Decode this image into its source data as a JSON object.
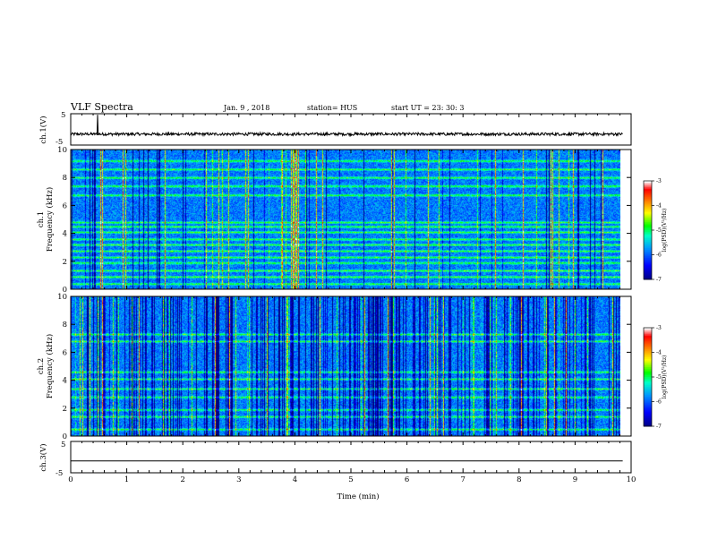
{
  "header": {
    "title": "VLF Spectra",
    "date": "Jan. 9 , 2018",
    "station": "station= HUS",
    "start": "start UT = 23: 30: 3"
  },
  "chart_data": [
    {
      "type": "line",
      "name": "ch.1 waveform",
      "ylabel": "ch.1(V)",
      "ylim": [
        -5,
        5
      ],
      "yticks": [
        "5",
        "-5"
      ],
      "xlim": [
        0,
        10
      ],
      "baseline": -1.5,
      "spike_at_min": 0.48
    },
    {
      "type": "heatmap",
      "name": "ch.1 spectrogram",
      "ylabel": "ch.1\nFrequency (kHz)",
      "ylim": [
        0,
        10
      ],
      "yticks": [
        "0",
        "2",
        "4",
        "6",
        "8",
        "10"
      ],
      "xlim": [
        0,
        10
      ],
      "data_end_min": 9.85,
      "colorbar": {
        "label": "log(PSD)(V²/Hz)",
        "range": [
          -7,
          -3
        ],
        "ticks": [
          "-3",
          "-4",
          "-5",
          "-6",
          "-7"
        ]
      },
      "harmonic_bands_khz": [
        0.4,
        0.9,
        1.35,
        1.9,
        2.3,
        2.75,
        3.2,
        3.6,
        4.1,
        4.5,
        4.8,
        6.75,
        7.4,
        8.0,
        8.6,
        9.2
      ]
    },
    {
      "type": "heatmap",
      "name": "ch.2 spectrogram",
      "ylabel": "ch.2\nFrequency (kHz)",
      "ylim": [
        0,
        10
      ],
      "yticks": [
        "0",
        "2",
        "4",
        "6",
        "8",
        "10"
      ],
      "xlim": [
        0,
        10
      ],
      "data_end_min": 9.85,
      "colorbar": {
        "label": "log(PSD)(V²/Hz)",
        "range": [
          -7,
          -3
        ],
        "ticks": [
          "-3",
          "-4",
          "-5",
          "-6",
          "-7"
        ]
      },
      "harmonic_bands_khz": [
        0.5,
        1.4,
        1.9,
        2.8,
        3.4,
        4.1,
        4.6,
        6.8,
        7.3
      ]
    },
    {
      "type": "line",
      "name": "ch.3 waveform",
      "ylabel": "ch.3(V)",
      "ylim": [
        -5,
        5
      ],
      "yticks": [
        "5",
        "-5"
      ],
      "xlim": [
        0,
        10
      ],
      "baseline": -1.2
    }
  ],
  "x_axis": {
    "label": "Time (min)",
    "ticks": [
      "0",
      "1",
      "2",
      "3",
      "4",
      "5",
      "6",
      "7",
      "8",
      "9",
      "10"
    ]
  },
  "colors": {
    "scale": [
      "#00007f",
      "#0000ff",
      "#00a0ff",
      "#00ffc8",
      "#00ff00",
      "#ffff00",
      "#ff8000",
      "#ff0000",
      "#ffffff"
    ]
  }
}
